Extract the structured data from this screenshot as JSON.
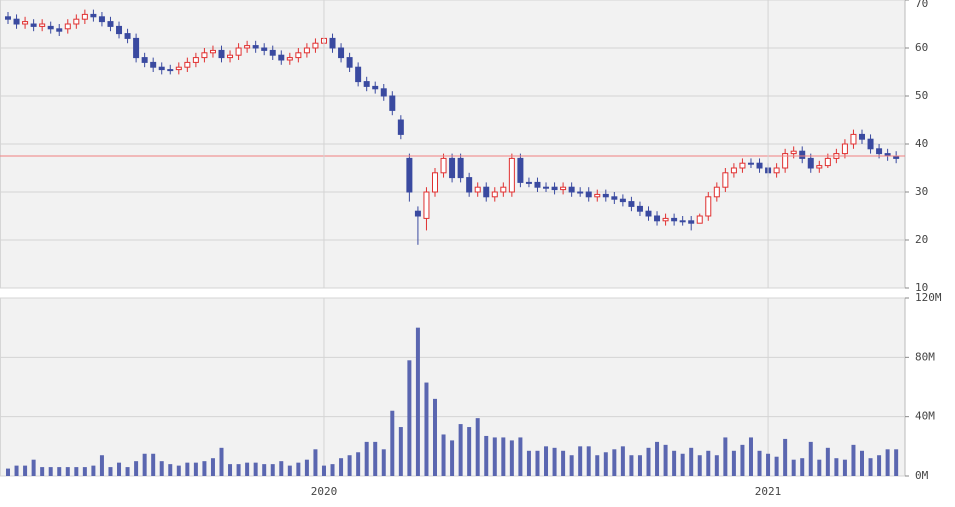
{
  "chart_data": [
    {
      "type": "candlestick",
      "up_color": "#e03030",
      "down_color": "#3a4aa0",
      "ylim": [
        10,
        70
      ],
      "yticks": [
        10,
        20,
        30,
        40,
        50,
        60,
        70
      ],
      "grid": true,
      "reference_line": {
        "value": 37.5,
        "color": "#f08080"
      },
      "open": [
        66.5,
        66,
        65,
        65,
        64.5,
        64.5,
        64,
        64,
        65,
        66,
        67,
        66.5,
        65.5,
        64.5,
        63,
        62,
        58,
        57,
        56,
        55.5,
        55.5,
        56,
        57,
        58,
        59,
        59.5,
        58,
        58.5,
        60,
        60.5,
        60,
        59.5,
        58.5,
        57.5,
        58,
        59,
        60,
        61,
        62,
        60,
        58,
        56,
        53,
        52,
        51.5,
        50,
        45,
        37,
        26,
        24.5,
        30,
        34,
        37,
        37,
        33,
        30,
        31,
        29,
        30,
        30,
        37,
        32,
        32,
        31,
        31,
        30.5,
        31,
        30,
        30,
        29,
        29.5,
        29,
        28.5,
        28,
        27,
        26,
        25,
        24,
        24.5,
        24,
        24,
        23.5,
        25,
        29,
        31,
        34,
        35,
        36,
        36,
        35,
        34,
        35,
        38,
        38.5,
        37,
        35,
        35.5,
        37,
        38,
        40,
        42,
        41,
        39,
        38,
        37.5
      ],
      "high": [
        67.5,
        67,
        66.5,
        66,
        66,
        65.5,
        65,
        66,
        67,
        68,
        68,
        67.5,
        66.5,
        65.5,
        64,
        63,
        59,
        58,
        57,
        56.5,
        57,
        58,
        59,
        60,
        60.5,
        60.5,
        59.5,
        61,
        61.5,
        61.5,
        61,
        60.5,
        59.5,
        59,
        60,
        61,
        62,
        63,
        63,
        61,
        59,
        57,
        54,
        53,
        52.5,
        51,
        46,
        38,
        27,
        31,
        35,
        38,
        38,
        38,
        34,
        32,
        32,
        31,
        32,
        38,
        38,
        33,
        33,
        32,
        32,
        32,
        32,
        31,
        31,
        30.5,
        30.5,
        30,
        29.5,
        29,
        28,
        27,
        26,
        25.5,
        25.5,
        25,
        25,
        25.5,
        30,
        32,
        35,
        36,
        37,
        37,
        37,
        36,
        36,
        39,
        39.5,
        39.5,
        38,
        36.5,
        38,
        39,
        41,
        43,
        43,
        42,
        40,
        39,
        38.5
      ],
      "low": [
        65,
        64,
        64,
        63.5,
        63.5,
        63,
        62.5,
        63,
        64,
        65,
        65.5,
        64.5,
        63.5,
        62,
        61,
        57,
        56,
        55,
        54.5,
        54.5,
        54.5,
        55,
        56,
        57,
        58,
        57,
        57,
        57.5,
        59,
        59,
        58.5,
        57.5,
        56.5,
        56.5,
        57,
        58,
        59,
        60,
        59,
        57,
        55,
        52,
        51,
        50.5,
        49,
        46,
        41,
        28,
        19,
        22,
        29,
        33,
        32,
        32,
        29,
        29,
        28,
        28,
        29,
        29,
        31,
        31,
        30,
        30,
        29.5,
        29.5,
        29,
        29,
        28,
        28,
        28,
        27.5,
        27,
        26,
        25,
        24,
        23,
        23,
        23,
        23,
        22,
        23.5,
        24,
        28,
        30,
        33,
        34,
        35,
        34,
        33,
        33,
        34,
        37,
        36,
        34,
        34,
        35,
        36,
        37,
        39,
        40,
        38,
        37,
        36.5,
        36
      ],
      "close": [
        66,
        65,
        65.5,
        64.5,
        65,
        64,
        63.5,
        65,
        66,
        67,
        66.5,
        65.5,
        64.5,
        63,
        62,
        58,
        57,
        56,
        55.5,
        55.5,
        56,
        57,
        58,
        59,
        59.5,
        58,
        58.5,
        60,
        60.5,
        60,
        59.5,
        58.5,
        57.5,
        58,
        59,
        60,
        61,
        62,
        60,
        58,
        56,
        53,
        52,
        51.5,
        50,
        47,
        42,
        30,
        25,
        30,
        34,
        37,
        33,
        33,
        30,
        31,
        29,
        30,
        31,
        37,
        32,
        32,
        31,
        31,
        30.5,
        31,
        30,
        30,
        29,
        29.5,
        29,
        28.5,
        28,
        27,
        26,
        25,
        24,
        24.5,
        24,
        24,
        23.5,
        25,
        29,
        31,
        34,
        35,
        36,
        36,
        35,
        34,
        35,
        38,
        38.5,
        37,
        35,
        35.5,
        37,
        38,
        40,
        42,
        41,
        39,
        38,
        37.5,
        37
      ]
    },
    {
      "type": "bar",
      "color": "#5a66b0",
      "categories": [
        null,
        null,
        null,
        null,
        null,
        null,
        null,
        null,
        null,
        null,
        null,
        null,
        null,
        null,
        null,
        null,
        null,
        null,
        null,
        null,
        null,
        null,
        null,
        null,
        null,
        null,
        null,
        null,
        null,
        null,
        null,
        null,
        null,
        null,
        null,
        null,
        null,
        "2020",
        null,
        null,
        null,
        null,
        null,
        null,
        null,
        null,
        null,
        null,
        null,
        null,
        null,
        null,
        null,
        null,
        null,
        null,
        null,
        null,
        null,
        null,
        null,
        null,
        null,
        null,
        null,
        null,
        null,
        null,
        null,
        null,
        null,
        null,
        null,
        null,
        null,
        null,
        null,
        null,
        null,
        null,
        null,
        null,
        null,
        null,
        null,
        null,
        null,
        null,
        null,
        "2021",
        null,
        null,
        null,
        null,
        null,
        null,
        null,
        null,
        null,
        null,
        null,
        null,
        null,
        null,
        null
      ],
      "values": [
        5,
        7,
        7,
        11,
        6,
        6,
        6,
        6,
        6,
        6,
        7,
        14,
        6,
        9,
        6,
        10,
        15,
        15,
        10,
        8,
        7,
        9,
        9,
        10,
        12,
        19,
        8,
        8,
        9,
        9,
        8,
        8,
        10,
        7,
        9,
        11,
        18,
        7,
        8,
        12,
        14,
        16,
        23,
        23,
        18,
        44,
        33,
        78,
        100,
        63,
        52,
        28,
        24,
        35,
        33,
        39,
        27,
        26,
        26,
        24,
        26,
        17,
        17,
        20,
        19,
        17,
        14,
        20,
        20,
        14,
        16,
        18,
        20,
        14,
        14,
        19,
        23,
        21,
        17,
        15,
        19,
        14,
        17,
        14,
        26,
        17,
        21,
        26,
        17,
        15,
        13,
        25,
        11,
        12,
        23,
        11,
        19,
        12,
        11,
        21,
        17,
        12,
        14,
        18,
        18
      ],
      "ylim": [
        0,
        120
      ],
      "yticks": [
        {
          "value": 0,
          "label": "0M"
        },
        {
          "value": 40,
          "label": "40M"
        },
        {
          "value": 80,
          "label": "80M"
        },
        {
          "value": 120,
          "label": "120M"
        }
      ],
      "grid": true
    }
  ]
}
